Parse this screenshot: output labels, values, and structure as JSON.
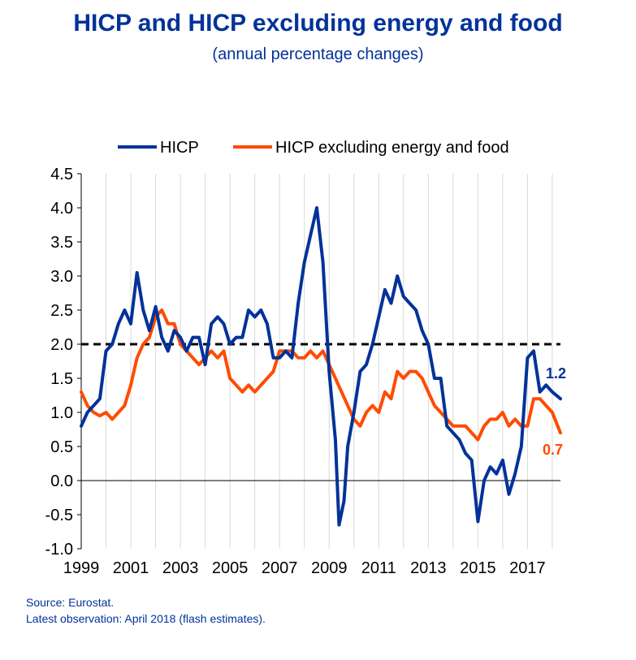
{
  "title": "HICP and HICP excluding energy and food",
  "subtitle": "(annual percentage changes)",
  "source": "Source: Eurostat.",
  "latest": "Latest observation: April 2018 (flash estimates).",
  "colors": {
    "hicp": "#003299",
    "core": "#FF4B00",
    "reference": "#000000",
    "grid": "#D9D9D9"
  },
  "chart_data": {
    "type": "line",
    "title": "HICP and HICP excluding energy and food",
    "subtitle": "(annual percentage changes)",
    "xlabel": "",
    "ylabel": "",
    "ylim": [
      -1.0,
      4.5
    ],
    "xlim": [
      1999.0,
      2018.33
    ],
    "x_ticks": [
      "1999",
      "2001",
      "2003",
      "2005",
      "2007",
      "2009",
      "2011",
      "2013",
      "2015",
      "2017"
    ],
    "y_ticks": [
      "4.5",
      "4.0",
      "3.5",
      "3.0",
      "2.5",
      "2.0",
      "1.5",
      "1.0",
      "0.5",
      "0.0",
      "-0.5",
      "-1.0"
    ],
    "grid": "vertical",
    "legend_position": "top",
    "reference_line": {
      "value": 2.0,
      "style": "dashed"
    },
    "series": [
      {
        "name": "HICP",
        "end_label": "1.2",
        "points": [
          [
            1999.0,
            0.8
          ],
          [
            1999.25,
            1.0
          ],
          [
            1999.5,
            1.1
          ],
          [
            1999.75,
            1.2
          ],
          [
            2000.0,
            1.9
          ],
          [
            2000.25,
            2.0
          ],
          [
            2000.5,
            2.3
          ],
          [
            2000.75,
            2.5
          ],
          [
            2001.0,
            2.3
          ],
          [
            2001.25,
            3.05
          ],
          [
            2001.5,
            2.5
          ],
          [
            2001.75,
            2.2
          ],
          [
            2002.0,
            2.55
          ],
          [
            2002.25,
            2.1
          ],
          [
            2002.5,
            1.9
          ],
          [
            2002.75,
            2.2
          ],
          [
            2003.0,
            2.1
          ],
          [
            2003.25,
            1.9
          ],
          [
            2003.5,
            2.1
          ],
          [
            2003.75,
            2.1
          ],
          [
            2004.0,
            1.7
          ],
          [
            2004.25,
            2.3
          ],
          [
            2004.5,
            2.4
          ],
          [
            2004.75,
            2.3
          ],
          [
            2005.0,
            2.0
          ],
          [
            2005.25,
            2.1
          ],
          [
            2005.5,
            2.1
          ],
          [
            2005.75,
            2.5
          ],
          [
            2006.0,
            2.4
          ],
          [
            2006.25,
            2.5
          ],
          [
            2006.5,
            2.3
          ],
          [
            2006.75,
            1.8
          ],
          [
            2007.0,
            1.8
          ],
          [
            2007.25,
            1.9
          ],
          [
            2007.5,
            1.8
          ],
          [
            2007.75,
            2.6
          ],
          [
            2008.0,
            3.2
          ],
          [
            2008.25,
            3.6
          ],
          [
            2008.5,
            4.0
          ],
          [
            2008.75,
            3.2
          ],
          [
            2009.0,
            1.6
          ],
          [
            2009.25,
            0.6
          ],
          [
            2009.4,
            -0.65
          ],
          [
            2009.6,
            -0.3
          ],
          [
            2009.75,
            0.5
          ],
          [
            2010.0,
            1.0
          ],
          [
            2010.25,
            1.6
          ],
          [
            2010.5,
            1.7
          ],
          [
            2010.75,
            2.0
          ],
          [
            2011.0,
            2.4
          ],
          [
            2011.25,
            2.8
          ],
          [
            2011.5,
            2.6
          ],
          [
            2011.75,
            3.0
          ],
          [
            2012.0,
            2.7
          ],
          [
            2012.25,
            2.6
          ],
          [
            2012.5,
            2.5
          ],
          [
            2012.75,
            2.2
          ],
          [
            2013.0,
            2.0
          ],
          [
            2013.25,
            1.5
          ],
          [
            2013.5,
            1.5
          ],
          [
            2013.75,
            0.8
          ],
          [
            2014.0,
            0.7
          ],
          [
            2014.25,
            0.6
          ],
          [
            2014.5,
            0.4
          ],
          [
            2014.75,
            0.3
          ],
          [
            2015.0,
            -0.6
          ],
          [
            2015.25,
            0.0
          ],
          [
            2015.5,
            0.2
          ],
          [
            2015.75,
            0.1
          ],
          [
            2016.0,
            0.3
          ],
          [
            2016.25,
            -0.2
          ],
          [
            2016.5,
            0.1
          ],
          [
            2016.75,
            0.5
          ],
          [
            2017.0,
            1.8
          ],
          [
            2017.25,
            1.9
          ],
          [
            2017.5,
            1.3
          ],
          [
            2017.75,
            1.4
          ],
          [
            2018.0,
            1.3
          ],
          [
            2018.33,
            1.2
          ]
        ]
      },
      {
        "name": "HICP excluding energy and food",
        "end_label": "0.7",
        "points": [
          [
            1999.0,
            1.3
          ],
          [
            1999.25,
            1.1
          ],
          [
            1999.5,
            1.0
          ],
          [
            1999.75,
            0.95
          ],
          [
            2000.0,
            1.0
          ],
          [
            2000.25,
            0.9
          ],
          [
            2000.5,
            1.0
          ],
          [
            2000.75,
            1.1
          ],
          [
            2001.0,
            1.4
          ],
          [
            2001.25,
            1.8
          ],
          [
            2001.5,
            2.0
          ],
          [
            2001.75,
            2.1
          ],
          [
            2002.0,
            2.4
          ],
          [
            2002.25,
            2.5
          ],
          [
            2002.5,
            2.3
          ],
          [
            2002.75,
            2.3
          ],
          [
            2003.0,
            2.0
          ],
          [
            2003.25,
            1.9
          ],
          [
            2003.5,
            1.8
          ],
          [
            2003.75,
            1.7
          ],
          [
            2004.0,
            1.8
          ],
          [
            2004.25,
            1.9
          ],
          [
            2004.5,
            1.8
          ],
          [
            2004.75,
            1.9
          ],
          [
            2005.0,
            1.5
          ],
          [
            2005.25,
            1.4
          ],
          [
            2005.5,
            1.3
          ],
          [
            2005.75,
            1.4
          ],
          [
            2006.0,
            1.3
          ],
          [
            2006.25,
            1.4
          ],
          [
            2006.5,
            1.5
          ],
          [
            2006.75,
            1.6
          ],
          [
            2007.0,
            1.9
          ],
          [
            2007.25,
            1.9
          ],
          [
            2007.5,
            1.9
          ],
          [
            2007.75,
            1.8
          ],
          [
            2008.0,
            1.8
          ],
          [
            2008.25,
            1.9
          ],
          [
            2008.5,
            1.8
          ],
          [
            2008.75,
            1.9
          ],
          [
            2009.0,
            1.7
          ],
          [
            2009.25,
            1.5
          ],
          [
            2009.5,
            1.3
          ],
          [
            2009.75,
            1.1
          ],
          [
            2010.0,
            0.9
          ],
          [
            2010.25,
            0.8
          ],
          [
            2010.5,
            1.0
          ],
          [
            2010.75,
            1.1
          ],
          [
            2011.0,
            1.0
          ],
          [
            2011.25,
            1.3
          ],
          [
            2011.5,
            1.2
          ],
          [
            2011.75,
            1.6
          ],
          [
            2012.0,
            1.5
          ],
          [
            2012.25,
            1.6
          ],
          [
            2012.5,
            1.6
          ],
          [
            2012.75,
            1.5
          ],
          [
            2013.0,
            1.3
          ],
          [
            2013.25,
            1.1
          ],
          [
            2013.5,
            1.0
          ],
          [
            2013.75,
            0.9
          ],
          [
            2014.0,
            0.8
          ],
          [
            2014.25,
            0.8
          ],
          [
            2014.5,
            0.8
          ],
          [
            2014.75,
            0.7
          ],
          [
            2015.0,
            0.6
          ],
          [
            2015.25,
            0.8
          ],
          [
            2015.5,
            0.9
          ],
          [
            2015.75,
            0.9
          ],
          [
            2016.0,
            1.0
          ],
          [
            2016.25,
            0.8
          ],
          [
            2016.5,
            0.9
          ],
          [
            2016.75,
            0.8
          ],
          [
            2017.0,
            0.8
          ],
          [
            2017.25,
            1.2
          ],
          [
            2017.5,
            1.2
          ],
          [
            2017.75,
            1.1
          ],
          [
            2018.0,
            1.0
          ],
          [
            2018.33,
            0.7
          ]
        ]
      }
    ]
  }
}
